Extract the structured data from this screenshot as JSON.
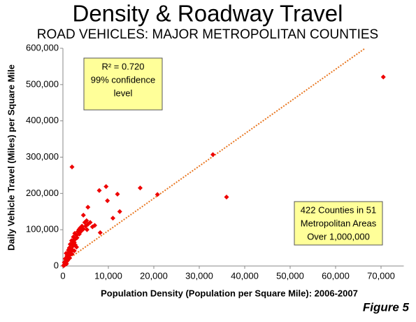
{
  "chart_data": {
    "type": "scatter",
    "title": "Density & Roadway Travel",
    "subtitle": "ROAD VEHICLES: MAJOR METROPOLITAN COUNTIES",
    "x_label": "Population Density (Population per Square Mile): 2006-2007",
    "y_label": "Daily Vehicle Travel (Miles) per Square Mile",
    "figure_label": "Figure 5",
    "annotations": [
      {
        "lines": [
          "R² = 0.720",
          "99% confidence",
          "level"
        ]
      },
      {
        "lines": [
          "422 Counties in 51",
          "Metropolitan Areas",
          "Over 1,000,000"
        ]
      }
    ],
    "xlim": [
      0,
      75000
    ],
    "ylim": [
      0,
      600000
    ],
    "xticks": [
      0,
      {
        "value": 10000,
        "label": "10,000"
      },
      {
        "value": 20000,
        "label": "20,000"
      },
      {
        "value": 30000,
        "label": "30,000"
      },
      {
        "value": 40000,
        "label": "40,000"
      },
      {
        "value": 50000,
        "label": "50,000"
      },
      {
        "value": 60000,
        "label": "60,000"
      },
      {
        "value": 70000,
        "label": "70,000"
      }
    ],
    "yticks": [
      0,
      {
        "value": 100000,
        "label": "100,000"
      },
      {
        "value": 200000,
        "label": "200,000"
      },
      {
        "value": 300000,
        "label": "300,000"
      },
      {
        "value": 400000,
        "label": "400,000"
      },
      {
        "value": 500000,
        "label": "500,000"
      },
      {
        "value": 600000,
        "label": "600,000"
      }
    ],
    "grid": false,
    "series": [
      {
        "color": "#ee0000",
        "x": [
          200,
          400,
          600,
          800,
          1000,
          500,
          1200,
          1500,
          700,
          1800,
          2000,
          1400,
          2200,
          1600,
          2500,
          1900,
          2800,
          2300,
          3000,
          2600,
          3300,
          3500,
          3800,
          4200,
          2100,
          1700,
          1300,
          900,
          2400,
          2700,
          3100,
          3600,
          4000,
          4500,
          5000,
          4800,
          5500,
          6000,
          5200,
          6500,
          7000,
          5300,
          300,
          1100,
          1500,
          2000,
          2500,
          3000,
          400,
          800,
          150,
          600,
          1000,
          1200,
          2000,
          5500,
          8000,
          9500,
          9800,
          8200,
          11000,
          12000,
          12500,
          17000,
          20800,
          33000,
          36000,
          70500,
          4500
        ],
        "y": [
          2000,
          5000,
          8000,
          12000,
          15000,
          20000,
          25000,
          30000,
          35000,
          40000,
          45000,
          50000,
          55000,
          60000,
          65000,
          70000,
          75000,
          80000,
          85000,
          90000,
          95000,
          100000,
          105000,
          110000,
          62000,
          48000,
          38000,
          28000,
          72000,
          58000,
          78000,
          88000,
          96000,
          102000,
          110000,
          120000,
          115000,
          120000,
          125000,
          108000,
          112000,
          100000,
          10000,
          18000,
          22000,
          33000,
          42000,
          52000,
          3000,
          6000,
          1000,
          14000,
          32000,
          44000,
          273000,
          162000,
          208000,
          219000,
          180000,
          92000,
          132000,
          198000,
          150000,
          215000,
          197000,
          307000,
          190000,
          521000,
          140000
        ]
      }
    ],
    "trendline": {
      "color": "#e87722",
      "x": [
        2300,
        66500
      ],
      "y": [
        29000,
        600000
      ]
    }
  }
}
